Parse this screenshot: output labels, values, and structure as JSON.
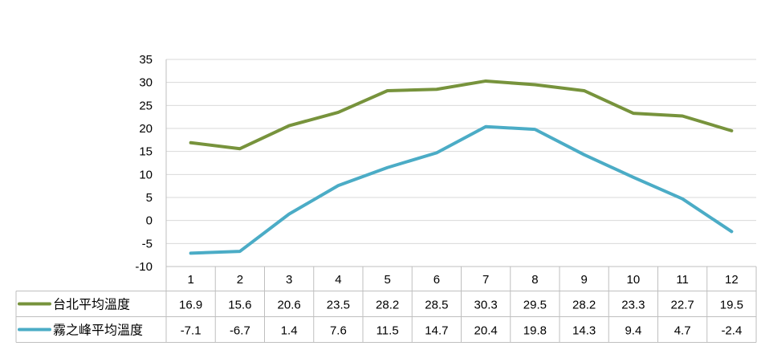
{
  "chart_data": {
    "type": "line",
    "title": "",
    "xlabel": "",
    "ylabel": "",
    "categories": [
      "1",
      "2",
      "3",
      "4",
      "5",
      "6",
      "7",
      "8",
      "9",
      "10",
      "11",
      "12"
    ],
    "ylim": [
      -10,
      35
    ],
    "yticks": [
      35,
      30,
      25,
      20,
      15,
      10,
      5,
      0,
      -5,
      -10
    ],
    "grid": "horizontal",
    "legend": "data-table",
    "series": [
      {
        "name": "台北平均溫度",
        "color": "#77933C",
        "values": [
          16.9,
          15.6,
          20.6,
          23.5,
          28.2,
          28.5,
          30.3,
          29.5,
          28.2,
          23.3,
          22.7,
          19.5
        ]
      },
      {
        "name": "霧之峰平均溫度",
        "color": "#4BACC6",
        "values": [
          -7.1,
          -6.7,
          1.4,
          7.6,
          11.5,
          14.7,
          20.4,
          19.8,
          14.3,
          9.4,
          4.7,
          -2.4
        ]
      }
    ]
  }
}
